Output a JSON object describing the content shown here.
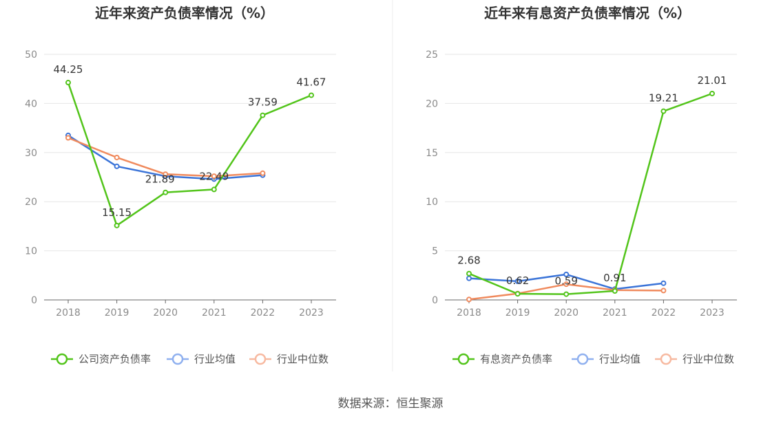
{
  "colors": {
    "company": "#52c41a",
    "industry_avg": "#3b74d8",
    "industry_median": "#f08a5d",
    "legend_avg": "#8fb0ef",
    "legend_median": "#f7b9a0",
    "grid": "#e6e6e6",
    "axis": "#666666"
  },
  "source": "数据来源：恒生聚源",
  "chart_data": [
    {
      "type": "line",
      "title": "近年来资产负债率情况（%）",
      "categories": [
        "2018",
        "2019",
        "2020",
        "2021",
        "2022",
        "2023"
      ],
      "ylim": [
        0,
        50
      ],
      "yticks": [
        "0",
        "10",
        "20",
        "30",
        "40",
        "50"
      ],
      "series": [
        {
          "name": "公司资产负债率",
          "key": "company",
          "values": [
            44.25,
            15.15,
            21.89,
            22.49,
            37.59,
            41.67
          ],
          "labels": [
            "44.25",
            "15.15",
            "21.89",
            "22.49",
            "37.59",
            "41.67"
          ]
        },
        {
          "name": "行业均值",
          "key": "industry_avg",
          "values": [
            33.5,
            27.2,
            25.2,
            24.6,
            25.4,
            null
          ]
        },
        {
          "name": "行业中位数",
          "key": "industry_median",
          "values": [
            33.0,
            29.0,
            25.6,
            25.2,
            25.8,
            null
          ]
        }
      ]
    },
    {
      "type": "line",
      "title": "近年来有息资产负债率情况（%）",
      "categories": [
        "2018",
        "2019",
        "2020",
        "2021",
        "2022",
        "2023"
      ],
      "ylim": [
        0,
        25
      ],
      "yticks": [
        "0",
        "5",
        "10",
        "15",
        "20",
        "25"
      ],
      "series": [
        {
          "name": "有息资产负债率",
          "key": "company",
          "values": [
            2.68,
            0.62,
            0.59,
            0.91,
            19.21,
            21.01
          ],
          "labels": [
            "2.68",
            "0.62",
            "0.59",
            "0.91",
            "19.21",
            "21.01"
          ]
        },
        {
          "name": "行业均值",
          "key": "industry_avg",
          "values": [
            2.2,
            1.9,
            2.6,
            1.1,
            1.7,
            null
          ]
        },
        {
          "name": "行业中位数",
          "key": "industry_median",
          "values": [
            0.05,
            0.65,
            1.6,
            1.0,
            0.95,
            null
          ]
        }
      ]
    }
  ]
}
